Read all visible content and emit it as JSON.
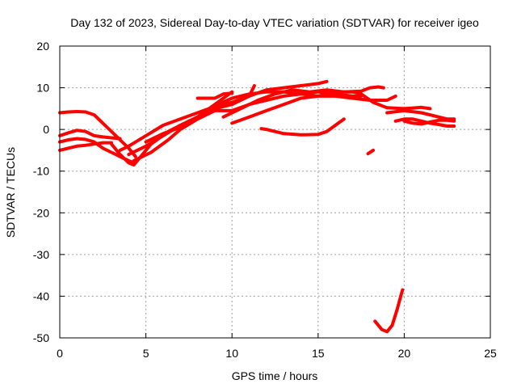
{
  "chart_data": {
    "type": "line",
    "title": "Day 132 of 2023, Sidereal Day-to-day VTEC variation (SDTVAR) for receiver igeo",
    "xlabel": "GPS time / hours",
    "ylabel": "SDTVAR / TECUs",
    "xlim": [
      0,
      25
    ],
    "ylim": [
      -50,
      20
    ],
    "x_ticks": [
      0,
      5,
      10,
      15,
      20,
      25
    ],
    "y_ticks": [
      -50,
      -40,
      -30,
      -20,
      -10,
      0,
      10,
      20
    ],
    "grid": true,
    "color": "#ff0000",
    "series": [
      {
        "name": "arc-1",
        "points": [
          [
            0,
            4
          ],
          [
            0.5,
            4.2
          ],
          [
            1,
            4.3
          ],
          [
            1.5,
            4.2
          ],
          [
            2,
            3.5
          ],
          [
            2.5,
            1.5
          ],
          [
            3,
            -0.5
          ],
          [
            3.5,
            -2.5
          ],
          [
            4,
            -4.5
          ],
          [
            4.4,
            -6.5
          ]
        ]
      },
      {
        "name": "arc-2",
        "points": [
          [
            0,
            -1.5
          ],
          [
            0.5,
            -0.8
          ],
          [
            1,
            -0.2
          ],
          [
            1.5,
            -0.5
          ],
          [
            2,
            -1.5
          ],
          [
            2.5,
            -1.8
          ],
          [
            3,
            -2
          ],
          [
            3.5,
            -2.2
          ]
        ]
      },
      {
        "name": "arc-3",
        "points": [
          [
            0,
            -3
          ],
          [
            0.5,
            -2.5
          ],
          [
            1,
            -2.2
          ],
          [
            1.5,
            -2.4
          ],
          [
            2,
            -3
          ],
          [
            2.5,
            -4.5
          ],
          [
            3,
            -5.5
          ],
          [
            3.5,
            -6.5
          ],
          [
            4,
            -7.5
          ],
          [
            4.3,
            -8
          ]
        ]
      },
      {
        "name": "arc-4",
        "points": [
          [
            0,
            -5
          ],
          [
            0.5,
            -4.5
          ],
          [
            1,
            -4
          ],
          [
            1.5,
            -3.8
          ],
          [
            2,
            -3.5
          ],
          [
            2.5,
            -3.2
          ],
          [
            3,
            -3.2
          ]
        ]
      },
      {
        "name": "arc-5",
        "points": [
          [
            3,
            -3.5
          ],
          [
            3.5,
            -6
          ],
          [
            4,
            -8
          ],
          [
            4.3,
            -8.5
          ],
          [
            4.8,
            -6
          ],
          [
            5.3,
            -3.5
          ],
          [
            5.8,
            -2
          ],
          [
            6.3,
            -0.5
          ],
          [
            7,
            1
          ],
          [
            8,
            3
          ],
          [
            9,
            6
          ],
          [
            10,
            9
          ]
        ]
      },
      {
        "name": "arc-6",
        "points": [
          [
            3.5,
            -5
          ],
          [
            4,
            -4
          ],
          [
            5,
            -1.5
          ],
          [
            6,
            1
          ],
          [
            7,
            2.5
          ],
          [
            8,
            4
          ],
          [
            9,
            5.5
          ],
          [
            10,
            6.5
          ],
          [
            11,
            8
          ],
          [
            11.3,
            10.5
          ]
        ]
      },
      {
        "name": "arc-7",
        "points": [
          [
            4,
            -6
          ],
          [
            5,
            -4
          ],
          [
            6,
            -1.5
          ],
          [
            7,
            1
          ],
          [
            8,
            3
          ],
          [
            9,
            5
          ],
          [
            10,
            6
          ],
          [
            11,
            8
          ],
          [
            12,
            9.5
          ],
          [
            13,
            10
          ],
          [
            14,
            10.5
          ],
          [
            15,
            11
          ],
          [
            15.5,
            11.5
          ]
        ]
      },
      {
        "name": "arc-8",
        "points": [
          [
            4.3,
            -7.5
          ],
          [
            5.3,
            -5.5
          ],
          [
            6.3,
            -2.5
          ],
          [
            7,
            0
          ],
          [
            8,
            2.5
          ],
          [
            9,
            4.5
          ],
          [
            10,
            4.5
          ],
          [
            11,
            6
          ],
          [
            12,
            7
          ],
          [
            13,
            8
          ],
          [
            14,
            8.5
          ],
          [
            15,
            9
          ],
          [
            16,
            8.5
          ],
          [
            17,
            8
          ],
          [
            17.5,
            8
          ]
        ]
      },
      {
        "name": "arc-9",
        "points": [
          [
            5,
            -3
          ],
          [
            6,
            -1
          ],
          [
            7,
            0.5
          ],
          [
            7.5,
            2
          ]
        ]
      },
      {
        "name": "arc-10",
        "points": [
          [
            8,
            7.5
          ],
          [
            9,
            7.5
          ],
          [
            9.5,
            8.5
          ],
          [
            10,
            8.7
          ]
        ]
      },
      {
        "name": "arc-11",
        "points": [
          [
            9.2,
            6
          ],
          [
            10,
            7.5
          ],
          [
            11,
            8.5
          ],
          [
            12,
            9
          ],
          [
            13,
            9
          ],
          [
            14,
            8.5
          ],
          [
            15,
            8
          ],
          [
            16,
            8
          ],
          [
            17,
            7.5
          ],
          [
            18,
            7
          ],
          [
            19,
            7
          ],
          [
            19.5,
            8
          ]
        ]
      },
      {
        "name": "arc-12",
        "points": [
          [
            9.5,
            3
          ],
          [
            10.5,
            5
          ],
          [
            11.5,
            7
          ],
          [
            12.5,
            8.5
          ],
          [
            13.5,
            9.5
          ],
          [
            14.5,
            9
          ],
          [
            15.5,
            9.5
          ],
          [
            16.5,
            9
          ],
          [
            17.5,
            9.2
          ],
          [
            18,
            10
          ],
          [
            18.5,
            10.2
          ],
          [
            18.8,
            10
          ]
        ]
      },
      {
        "name": "arc-13",
        "points": [
          [
            10,
            1.5
          ],
          [
            11,
            3
          ],
          [
            12,
            4.5
          ],
          [
            13,
            6
          ],
          [
            14,
            7.5
          ],
          [
            15,
            8
          ],
          [
            16,
            9
          ],
          [
            17,
            9
          ],
          [
            17.5,
            8.5
          ],
          [
            18.2,
            6.5
          ],
          [
            19,
            5.2
          ],
          [
            20,
            5
          ],
          [
            21,
            5.3
          ],
          [
            21.5,
            5
          ]
        ]
      },
      {
        "name": "arc-14",
        "points": [
          [
            11.7,
            0.2
          ],
          [
            12,
            0
          ],
          [
            13,
            -1
          ],
          [
            14,
            -1.3
          ],
          [
            15,
            -1.2
          ],
          [
            15.5,
            -0.5
          ],
          [
            16,
            1
          ],
          [
            16.5,
            2.5
          ]
        ]
      },
      {
        "name": "arc-15",
        "points": [
          [
            17.9,
            -5.8
          ],
          [
            18.2,
            -5
          ]
        ]
      },
      {
        "name": "arc-16",
        "points": [
          [
            18.3,
            -46
          ],
          [
            18.7,
            -48
          ],
          [
            19,
            -48.5
          ],
          [
            19.3,
            -47
          ],
          [
            19.6,
            -43
          ],
          [
            19.8,
            -40
          ],
          [
            19.9,
            -38.5
          ]
        ]
      },
      {
        "name": "arc-17",
        "points": [
          [
            19,
            4
          ],
          [
            20,
            4.5
          ],
          [
            21,
            4
          ],
          [
            22,
            3
          ],
          [
            22.5,
            2.5
          ],
          [
            22.9,
            2.5
          ]
        ]
      },
      {
        "name": "arc-18",
        "points": [
          [
            19.5,
            2
          ],
          [
            20,
            2.5
          ],
          [
            20.5,
            2.5
          ],
          [
            21,
            2
          ],
          [
            21.5,
            1.5
          ],
          [
            22,
            1.2
          ],
          [
            22.5,
            0.8
          ],
          [
            22.9,
            0.8
          ]
        ]
      },
      {
        "name": "arc-19",
        "points": [
          [
            20,
            2
          ],
          [
            20.5,
            1.5
          ],
          [
            21,
            1.3
          ],
          [
            21.5,
            1.8
          ],
          [
            22,
            2.2
          ],
          [
            22.5,
            2.2
          ],
          [
            22.9,
            2
          ]
        ]
      }
    ]
  }
}
